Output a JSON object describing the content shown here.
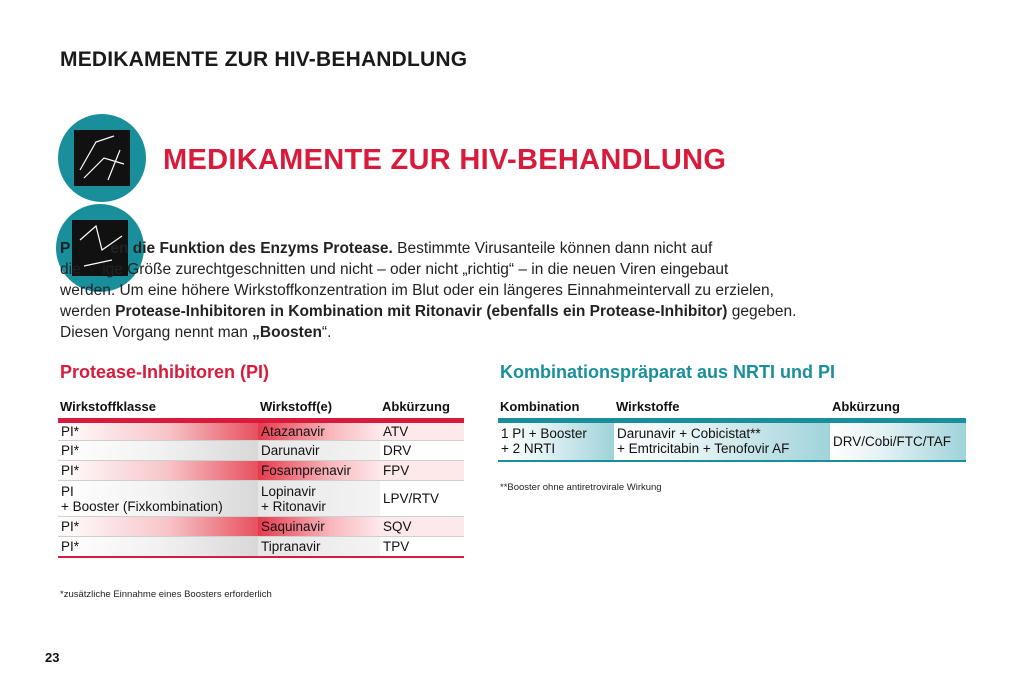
{
  "header": {
    "title": "MEDIKAMENTE ZUR HIV-BEHANDLUNG"
  },
  "section": {
    "title": "MEDIKAMENTE ZUR HIV-BEHANDLUNG"
  },
  "body": {
    "p1_bold_fragment": "P",
    "p1_bold": "en die Funktion des Enzyms Protease.",
    "p1_rest": " Bestimmte Virusanteile können dann nicht auf",
    "p2": "die     ige Größe zurechtgeschnitten und nicht – oder nicht „richtig“ – in die neuen Viren eingebaut",
    "p3": "werden. Um eine höhere Wirkstoffkonzentration im Blut oder ein längeres Einnahmeintervall zu  erzielen,",
    "p4_start": "werden ",
    "p4_bold": "Protease-Inhibitoren in Kombination mit Ritonavir (ebenfalls ein Protease-Inhibitor)",
    "p4_end": "  gegeben.",
    "p5_start": "Diesen Vorgang nennt man  ",
    "p5_bold": "„Boosten",
    "p5_end": "“."
  },
  "pi": {
    "heading": "Protease-Inhibitoren (PI)",
    "columns": [
      "Wirkstoffklasse",
      "Wirkstoff(e)",
      "Abkürzung"
    ],
    "rows": [
      {
        "klasse": "PI*",
        "wirkstoff": "Atazanavir",
        "abk": "ATV"
      },
      {
        "klasse": "PI*",
        "wirkstoff": "Darunavir",
        "abk": "DRV"
      },
      {
        "klasse": "PI*",
        "wirkstoff": "Fosamprenavir",
        "abk": "FPV"
      },
      {
        "klasse_line1": "PI",
        "klasse_line2": "+ Booster (Fixkombination)",
        "wirkstoff_line1": "Lopinavir",
        "wirkstoff_line2": "+ Ritonavir",
        "abk": "LPV/RTV"
      },
      {
        "klasse": "PI*",
        "wirkstoff": "Saquinavir",
        "abk": "SQV"
      },
      {
        "klasse": "PI*",
        "wirkstoff": "Tipranavir",
        "abk": "TPV"
      }
    ],
    "footnote": "*zusätzliche Einnahme eines Boosters erforderlich"
  },
  "combo": {
    "heading": "Kombinationspräparat aus NRTI und PI",
    "columns": [
      "Kombination",
      "Wirkstoffe",
      "Abkürzung"
    ],
    "row": {
      "kombi_line1": "1 PI + Booster",
      "kombi_line2": "+ 2 NRTI",
      "wirkstoffe_line1": "Darunavir + Cobicistat**",
      "wirkstoffe_line2": "+ Emtricitabin + Tenofovir AF",
      "abk": "DRV/Cobi/FTC/TAF"
    },
    "footnote": "**Booster ohne antiretrovirale Wirkung"
  },
  "page_number": "23",
  "colors": {
    "accent_red": "#d81b3c",
    "accent_teal": "#1a8f9c"
  }
}
